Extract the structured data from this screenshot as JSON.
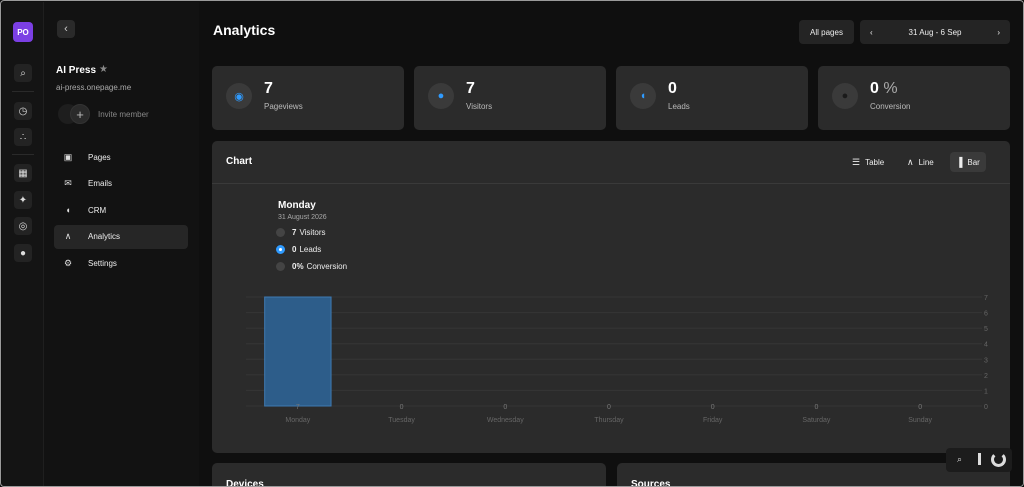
{
  "rail": {
    "avatar": "PO"
  },
  "sidebar": {
    "site_name": "AI Press",
    "site_url": "ai-press.onepage.me",
    "invite_label": "Invite member",
    "items": [
      {
        "label": "Pages",
        "icon": "pages-icon"
      },
      {
        "label": "Emails",
        "icon": "mail-icon"
      },
      {
        "label": "CRM",
        "icon": "crm-icon"
      },
      {
        "label": "Analytics",
        "icon": "analytics-icon",
        "active": true
      },
      {
        "label": "Settings",
        "icon": "gear-icon"
      }
    ]
  },
  "header": {
    "title": "Analytics",
    "filter_label": "All pages",
    "date_range": "31 Aug - 6 Sep"
  },
  "stats": [
    {
      "value": "7",
      "label": "Pageviews",
      "icon": "eye-icon"
    },
    {
      "value": "7",
      "label": "Visitors",
      "icon": "user-icon"
    },
    {
      "value": "0",
      "label": "Leads",
      "icon": "leads-icon"
    },
    {
      "value": "0",
      "unit": "%",
      "label": "Conversion",
      "icon": "conversion-icon"
    }
  ],
  "chart_card": {
    "title": "Chart",
    "views": [
      "Table",
      "Line",
      "Bar"
    ],
    "active_view": "Bar",
    "tooltip": {
      "day": "Monday",
      "date": "31 August 2026",
      "rows": [
        {
          "value": "7",
          "label": "Visitors"
        },
        {
          "value": "0",
          "label": "Leads"
        },
        {
          "value": "0%",
          "label": "Conversion"
        }
      ]
    }
  },
  "chart_data": {
    "type": "bar",
    "categories": [
      "Monday",
      "Tuesday",
      "Wednesday",
      "Thursday",
      "Friday",
      "Saturday",
      "Sunday"
    ],
    "series": [
      {
        "name": "Visitors",
        "values": [
          7,
          0,
          0,
          0,
          0,
          0,
          0
        ]
      }
    ],
    "value_labels": [
      "7",
      "0",
      "0",
      "0",
      "0",
      "0",
      "0"
    ],
    "yticks": [
      0,
      1,
      2,
      3,
      4,
      5,
      6,
      7
    ],
    "ylim": [
      0,
      7
    ],
    "grid": true,
    "bar_color": "#2d5d8a"
  },
  "bottom": {
    "devices": "Devices",
    "sources": "Sources"
  }
}
